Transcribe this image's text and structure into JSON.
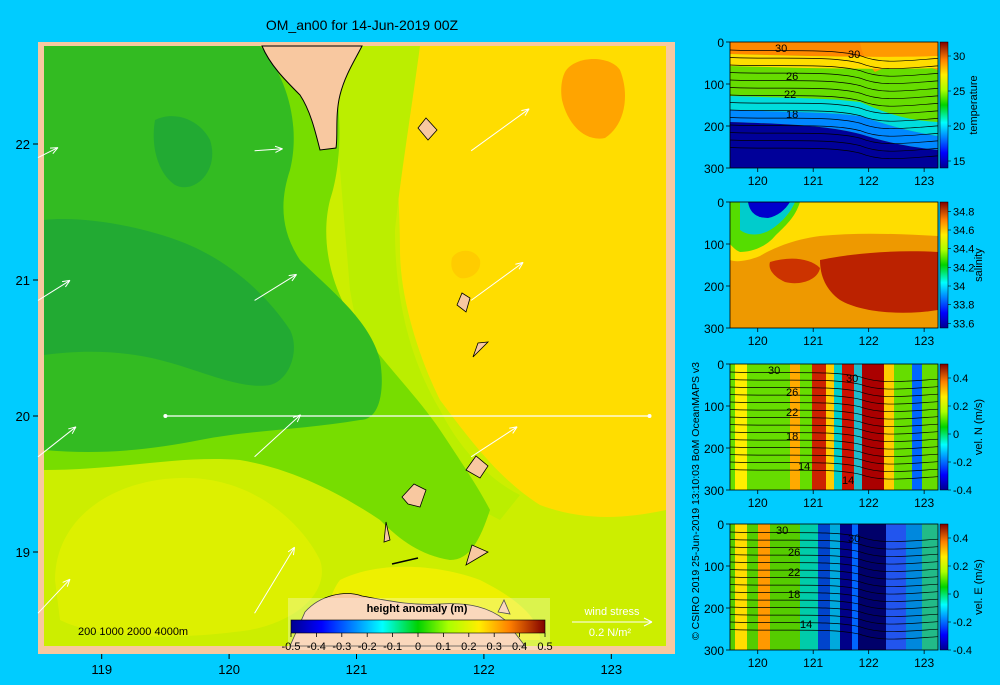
{
  "title": "OM_an00 for 14-Jun-2019 00Z",
  "colors": {
    "background": "#00ccff",
    "land": "#f8c8a0"
  },
  "chart_data": [
    {
      "type": "heatmap",
      "name": "main-map",
      "title": "OM_an00 for 14-Jun-2019 00Z",
      "xlim": [
        118.5,
        123.5
      ],
      "ylim": [
        18.25,
        22.75
      ],
      "x_ticks": [
        {
          "v": 119,
          "label": "119"
        },
        {
          "v": 120,
          "label": "120"
        },
        {
          "v": 121,
          "label": "121"
        },
        {
          "v": 122,
          "label": "122"
        },
        {
          "v": 123,
          "label": "123"
        }
      ],
      "y_ticks": [
        {
          "v": 19,
          "label": "19"
        },
        {
          "v": 20,
          "label": "20"
        },
        {
          "v": 21,
          "label": "21"
        },
        {
          "v": 22,
          "label": "22"
        }
      ],
      "colorbar": {
        "label": "height anomaly (m)",
        "range": [
          -0.5,
          0.5
        ],
        "ticks": [
          "-0.5",
          "-0.4",
          "-0.3",
          "-0.2",
          "-0.1",
          "0",
          "0.1",
          "0.2",
          "0.3",
          "0.4",
          "0.5"
        ]
      },
      "depth_legend": "200  1000  2000  4000m",
      "wind_legend": {
        "label": "wind stress",
        "value": "0.2 N/m²"
      },
      "transect": {
        "lat": 20.0,
        "lon_start": 119.5,
        "lon_end": 123.3
      },
      "wind_arrows": [
        {
          "lon": 118.5,
          "lat": 21.9,
          "u": 0.2,
          "v": 0.1
        },
        {
          "lon": 120.2,
          "lat": 21.95,
          "u": 0.28,
          "v": 0.02
        },
        {
          "lon": 121.9,
          "lat": 21.95,
          "u": 0.58,
          "v": 0.42
        },
        {
          "lon": 118.5,
          "lat": 20.85,
          "u": 0.32,
          "v": 0.2
        },
        {
          "lon": 120.2,
          "lat": 20.85,
          "u": 0.42,
          "v": 0.26
        },
        {
          "lon": 121.9,
          "lat": 20.85,
          "u": 0.52,
          "v": 0.38
        },
        {
          "lon": 118.5,
          "lat": 19.7,
          "u": 0.38,
          "v": 0.3
        },
        {
          "lon": 120.2,
          "lat": 19.7,
          "u": 0.46,
          "v": 0.42
        },
        {
          "lon": 121.9,
          "lat": 19.7,
          "u": 0.46,
          "v": 0.3
        },
        {
          "lon": 118.5,
          "lat": 18.55,
          "u": 0.32,
          "v": 0.34
        },
        {
          "lon": 120.2,
          "lat": 18.55,
          "u": 0.4,
          "v": 0.66
        }
      ]
    },
    {
      "type": "heatmap",
      "name": "temperature-section",
      "ylabel": "temperature",
      "xlim": [
        119.5,
        123.25
      ],
      "ylim": [
        300,
        0
      ],
      "x_ticks": [
        "120",
        "121",
        "122",
        "123"
      ],
      "y_ticks": [
        "0",
        "100",
        "200",
        "300"
      ],
      "colorbar": {
        "range": [
          14,
          32
        ],
        "ticks": [
          "30",
          "25",
          "20",
          "15"
        ]
      },
      "contour_labels": [
        "30",
        "30",
        "26",
        "22",
        "18"
      ]
    },
    {
      "type": "heatmap",
      "name": "salinity-section",
      "ylabel": "salinity",
      "xlim": [
        119.5,
        123.25
      ],
      "ylim": [
        300,
        0
      ],
      "x_ticks": [
        "120",
        "121",
        "122",
        "123"
      ],
      "y_ticks": [
        "0",
        "100",
        "200",
        "300"
      ],
      "colorbar": {
        "range": [
          33.55,
          34.9
        ],
        "ticks": [
          "34.8",
          "34.6",
          "34.4",
          "34.2",
          "34",
          "33.8",
          "33.6"
        ]
      }
    },
    {
      "type": "heatmap",
      "name": "velocity-north-section",
      "ylabel": "vel. N (m/s)",
      "xlim": [
        119.5,
        123.25
      ],
      "ylim": [
        300,
        0
      ],
      "x_ticks": [
        "120",
        "121",
        "122",
        "123"
      ],
      "y_ticks": [
        "0",
        "100",
        "200",
        "300"
      ],
      "colorbar": {
        "range": [
          -0.4,
          0.5
        ],
        "ticks": [
          "0.4",
          "0.2",
          "0",
          "-0.2",
          "-0.4"
        ]
      },
      "contour_labels": [
        "30",
        "30",
        "26",
        "22",
        "18",
        "14",
        "14"
      ]
    },
    {
      "type": "heatmap",
      "name": "velocity-east-section",
      "ylabel": "vel. E (m/s)",
      "xlim": [
        119.5,
        123.25
      ],
      "ylim": [
        300,
        0
      ],
      "x_ticks": [
        "120",
        "121",
        "122",
        "123"
      ],
      "y_ticks": [
        "0",
        "100",
        "200",
        "300"
      ],
      "colorbar": {
        "range": [
          -0.4,
          0.5
        ],
        "ticks": [
          "0.4",
          "0.2",
          "0",
          "-0.2",
          "-0.4"
        ]
      },
      "contour_labels": [
        "30",
        "30",
        "26",
        "22",
        "18",
        "14"
      ]
    }
  ],
  "credit": "© CSIRO 2019   25-Jun-2019 13:10:03 BoM OceanMAPS v3"
}
